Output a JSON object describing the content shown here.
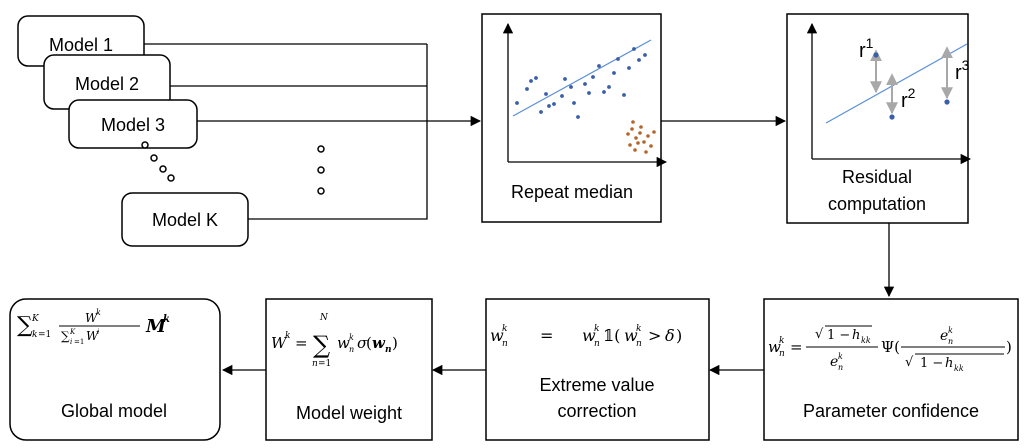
{
  "models": {
    "model_1": "Model 1",
    "model_2": "Model 2",
    "model_3": "Model 3",
    "model_k": "Model K"
  },
  "repeat_median": {
    "caption": "Repeat median"
  },
  "residual": {
    "caption_line1": "Residual",
    "caption_line2": "computation",
    "r1": "r",
    "r1_sup": "1",
    "r2": "r",
    "r2_sup": "2",
    "r3": "r",
    "r3_sup": "3"
  },
  "parameter_confidence": {
    "caption": "Parameter confidence"
  },
  "extreme_value": {
    "caption_line1": "Extreme value",
    "caption_line2": "correction"
  },
  "model_weight": {
    "caption": "Model weight"
  },
  "global_model": {
    "caption": "Global model"
  },
  "colors": {
    "scatter_points": "#3a5fa8",
    "outlier_points": "#b5652b",
    "fit_line": "#5b8fd6",
    "residual_arrow": "#a8a8a8"
  }
}
